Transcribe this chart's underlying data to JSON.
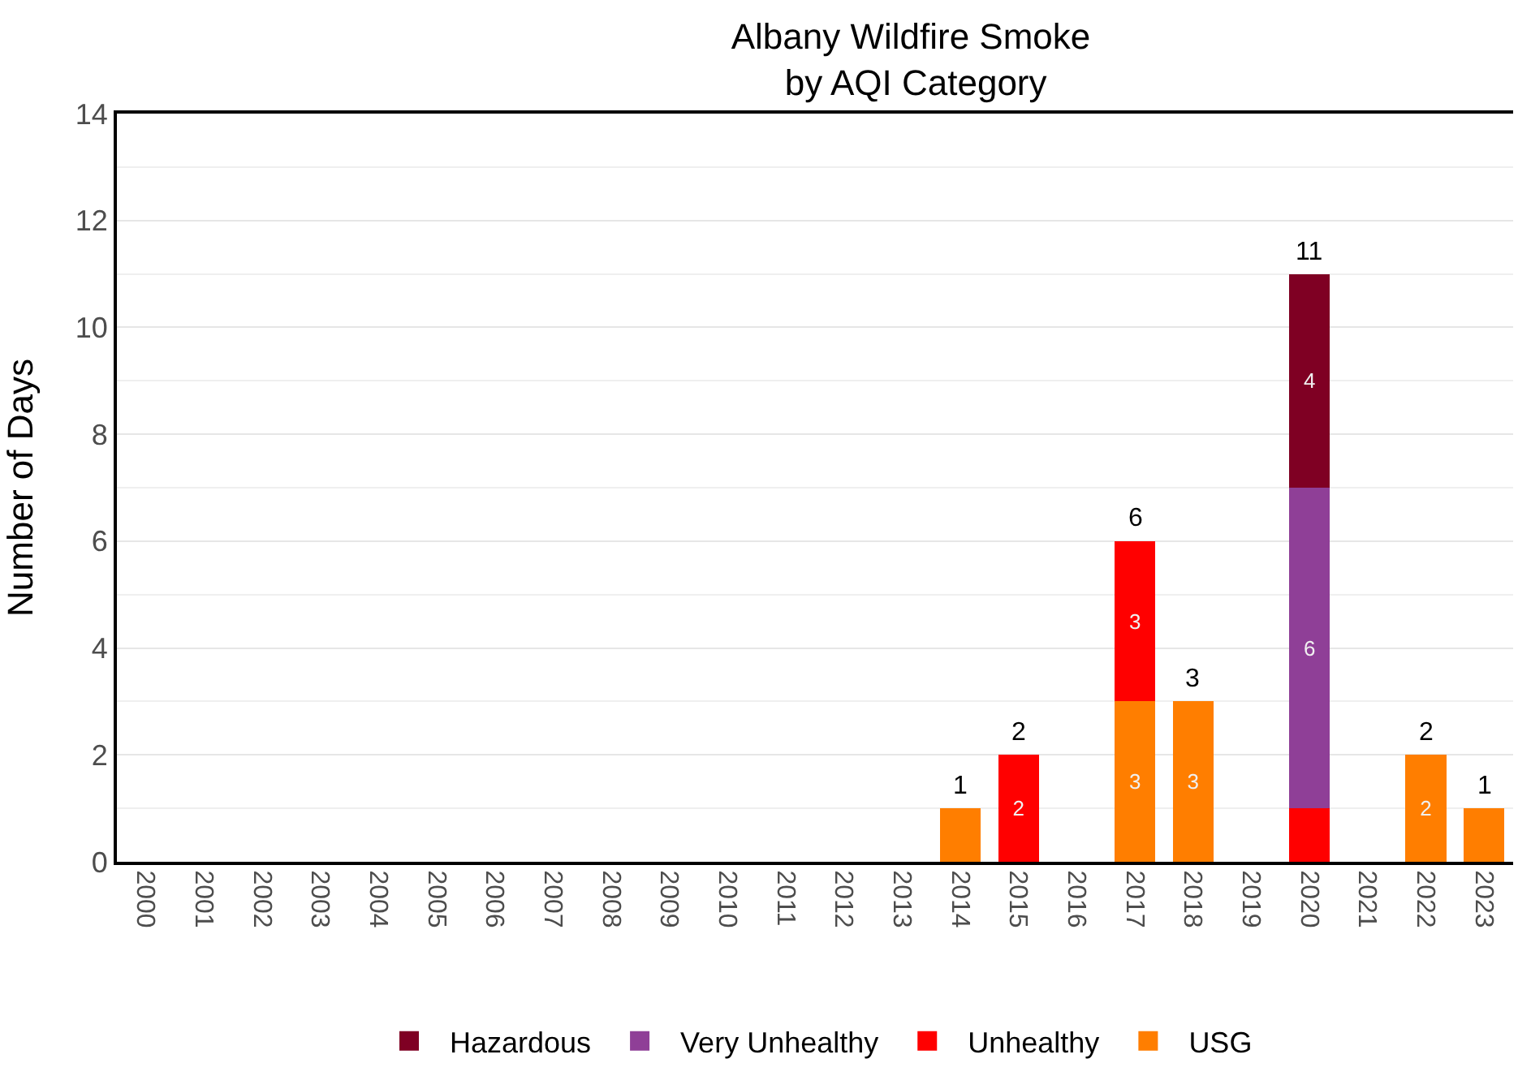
{
  "chart_data": {
    "type": "bar",
    "title": "Albany Wildfire Smoke\nby AQI Category",
    "ylabel": "Number of Days",
    "categories": [
      "2000",
      "2001",
      "2002",
      "2003",
      "2004",
      "2005",
      "2006",
      "2007",
      "2008",
      "2009",
      "2010",
      "2011",
      "2012",
      "2013",
      "2014",
      "2015",
      "2016",
      "2017",
      "2018",
      "2019",
      "2020",
      "2021",
      "2022",
      "2023"
    ],
    "stacked": true,
    "series": [
      {
        "name": "USG",
        "color": "#ff7e00",
        "values": [
          0,
          0,
          0,
          0,
          0,
          0,
          0,
          0,
          0,
          0,
          0,
          0,
          0,
          0,
          1,
          0,
          0,
          3,
          3,
          0,
          0,
          0,
          2,
          1
        ],
        "value_labels": [
          null,
          null,
          null,
          null,
          null,
          null,
          null,
          null,
          null,
          null,
          null,
          null,
          null,
          null,
          null,
          null,
          null,
          "3",
          "3",
          null,
          null,
          null,
          "2",
          null
        ]
      },
      {
        "name": "Unhealthy",
        "color": "#ff0000",
        "values": [
          0,
          0,
          0,
          0,
          0,
          0,
          0,
          0,
          0,
          0,
          0,
          0,
          0,
          0,
          0,
          2,
          0,
          3,
          0,
          0,
          1,
          0,
          0,
          0
        ],
        "value_labels": [
          null,
          null,
          null,
          null,
          null,
          null,
          null,
          null,
          null,
          null,
          null,
          null,
          null,
          null,
          null,
          "2",
          null,
          "3",
          null,
          null,
          null,
          null,
          null,
          null
        ]
      },
      {
        "name": "Very Unhealthy",
        "color": "#8f3f97",
        "values": [
          0,
          0,
          0,
          0,
          0,
          0,
          0,
          0,
          0,
          0,
          0,
          0,
          0,
          0,
          0,
          0,
          0,
          0,
          0,
          0,
          6,
          0,
          0,
          0
        ],
        "value_labels": [
          null,
          null,
          null,
          null,
          null,
          null,
          null,
          null,
          null,
          null,
          null,
          null,
          null,
          null,
          null,
          null,
          null,
          null,
          null,
          null,
          "6",
          null,
          null,
          null
        ]
      },
      {
        "name": "Hazardous",
        "color": "#7f0023",
        "values": [
          0,
          0,
          0,
          0,
          0,
          0,
          0,
          0,
          0,
          0,
          0,
          0,
          0,
          0,
          0,
          0,
          0,
          0,
          0,
          0,
          4,
          0,
          0,
          0
        ],
        "value_labels": [
          null,
          null,
          null,
          null,
          null,
          null,
          null,
          null,
          null,
          null,
          null,
          null,
          null,
          null,
          null,
          null,
          null,
          null,
          null,
          null,
          "4",
          null,
          null,
          null
        ]
      }
    ],
    "totals": [
      null,
      null,
      null,
      null,
      null,
      null,
      null,
      null,
      null,
      null,
      null,
      null,
      null,
      null,
      "1",
      "2",
      null,
      "6",
      "3",
      null,
      "11",
      null,
      "2",
      "1"
    ],
    "ylim": [
      0,
      14
    ],
    "yticks": [
      0,
      2,
      4,
      6,
      8,
      10,
      12,
      14
    ],
    "grid": "y",
    "legend": "bottom"
  }
}
